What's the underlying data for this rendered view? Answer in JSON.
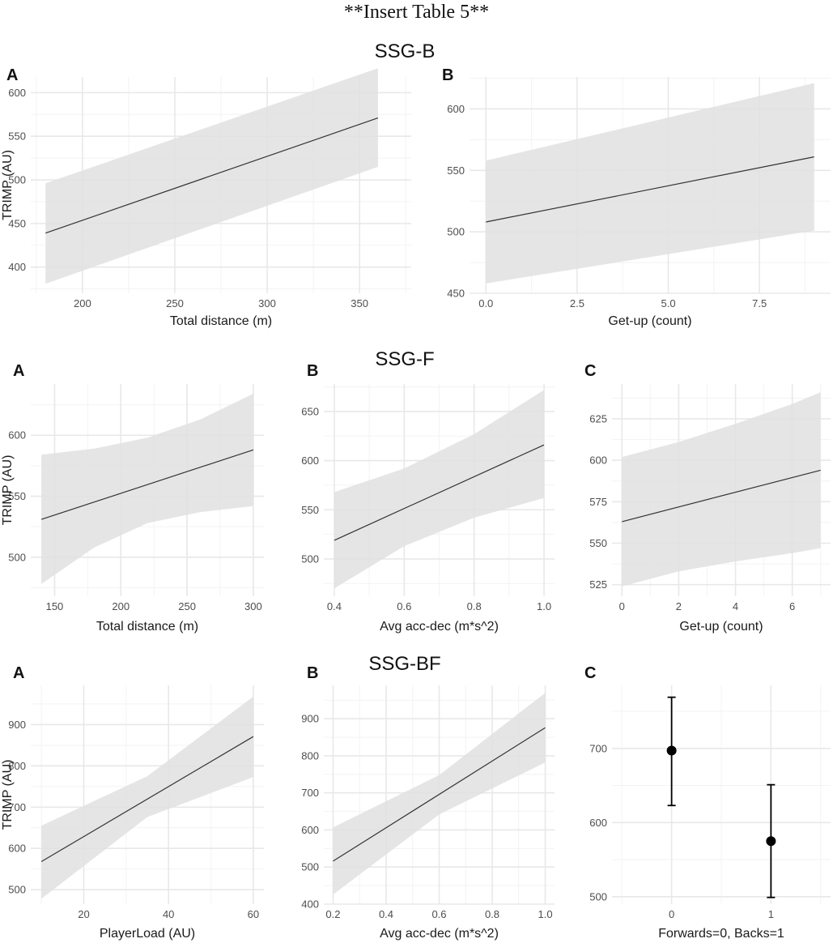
{
  "page": {
    "header_note": "**Insert Table 5**"
  },
  "sections": [
    {
      "title": "SSG-B"
    },
    {
      "title": "SSG-F"
    },
    {
      "title": "SSG-BF"
    }
  ],
  "colors": {
    "ribbon": "#e0e0e0",
    "line": "#333333",
    "grid_major": "#e8e8e8",
    "grid_minor": "#f3f3f3",
    "point": "#000000"
  },
  "chart_data": [
    {
      "id": "ssgb-a",
      "section": "SSG-B",
      "panel": "A",
      "type": "line",
      "title": "",
      "xlabel": "Total distance (m)",
      "ylabel": "TRIMP (AU)",
      "xlim": [
        172,
        378
      ],
      "ylim": [
        370,
        618
      ],
      "xticks": [
        200,
        250,
        300,
        350
      ],
      "xtick_labels": [
        "200",
        "250",
        "300",
        "350"
      ],
      "yticks": [
        400,
        450,
        500,
        550,
        600
      ],
      "ytick_labels": [
        "400",
        "450",
        "500",
        "550",
        "600"
      ],
      "x": [
        180,
        360
      ],
      "y": [
        439,
        571
      ],
      "band_x": [
        180,
        360
      ],
      "band_lo": [
        381,
        515
      ],
      "band_hi": [
        496,
        628
      ]
    },
    {
      "id": "ssgb-b",
      "section": "SSG-B",
      "panel": "B",
      "type": "line",
      "title": "",
      "xlabel": "Get-up (count)",
      "ylabel": "",
      "xlim": [
        -0.45,
        9.45
      ],
      "ylim": [
        450,
        626
      ],
      "xticks": [
        0,
        2.5,
        5,
        7.5
      ],
      "xtick_labels": [
        "0.0",
        "2.5",
        "5.0",
        "7.5"
      ],
      "yticks": [
        450,
        500,
        550,
        600
      ],
      "ytick_labels": [
        "450",
        "500",
        "550",
        "600"
      ],
      "x": [
        0,
        9
      ],
      "y": [
        508,
        561
      ],
      "band_x": [
        0,
        9
      ],
      "band_lo": [
        458,
        501
      ],
      "band_hi": [
        558,
        621
      ]
    },
    {
      "id": "ssgf-a",
      "section": "SSG-F",
      "panel": "A",
      "type": "line",
      "title": "",
      "xlabel": "Total distance (m)",
      "ylabel": "TRIMP (AU)",
      "xlim": [
        132,
        308
      ],
      "ylim": [
        468,
        642
      ],
      "xticks": [
        150,
        200,
        250,
        300
      ],
      "xtick_labels": [
        "150",
        "200",
        "250",
        "300"
      ],
      "yticks": [
        500,
        550,
        600
      ],
      "ytick_labels": [
        "500",
        "550",
        "600"
      ],
      "x": [
        140,
        300
      ],
      "y": [
        531,
        588
      ],
      "band_x": [
        140,
        180,
        220,
        260,
        300
      ],
      "band_lo": [
        478,
        508,
        528,
        537,
        542
      ],
      "band_hi": [
        584,
        589,
        598,
        613,
        634
      ]
    },
    {
      "id": "ssgf-b",
      "section": "SSG-F",
      "panel": "B",
      "type": "line",
      "title": "",
      "xlabel": "Avg acc-dec (m*s^2)",
      "ylabel": "",
      "xlim": [
        0.37,
        1.03
      ],
      "ylim": [
        462,
        678
      ],
      "xticks": [
        0.4,
        0.6,
        0.8,
        1.0
      ],
      "xtick_labels": [
        "0.4",
        "0.6",
        "0.8",
        "1.0"
      ],
      "yticks": [
        500,
        550,
        600,
        650
      ],
      "ytick_labels": [
        "500",
        "550",
        "600",
        "650"
      ],
      "x": [
        0.4,
        1.0
      ],
      "y": [
        519,
        616
      ],
      "band_x": [
        0.4,
        0.6,
        0.8,
        1.0
      ],
      "band_lo": [
        470,
        513,
        542,
        562
      ],
      "band_hi": [
        568,
        592,
        627,
        672
      ]
    },
    {
      "id": "ssgf-c",
      "section": "SSG-F",
      "panel": "C",
      "type": "line",
      "title": "",
      "xlabel": "Get-up (count)",
      "ylabel": "",
      "xlim": [
        -0.35,
        7.35
      ],
      "ylim": [
        518,
        646
      ],
      "xticks": [
        0,
        2,
        4,
        6
      ],
      "xtick_labels": [
        "0",
        "2",
        "4",
        "6"
      ],
      "yticks": [
        525,
        550,
        575,
        600,
        625
      ],
      "ytick_labels": [
        "525",
        "550",
        "575",
        "600",
        "625"
      ],
      "x": [
        0,
        7
      ],
      "y": [
        563,
        594
      ],
      "band_x": [
        0,
        2,
        4,
        6,
        7
      ],
      "band_lo": [
        524,
        533,
        539,
        544,
        547
      ],
      "band_hi": [
        602,
        611,
        622,
        634,
        641
      ]
    },
    {
      "id": "ssgbf-a",
      "section": "SSG-BF",
      "panel": "A",
      "type": "line",
      "title": "",
      "xlabel": "PlayerLoad (AU)",
      "ylabel": "TRIMP (AU)",
      "xlim": [
        7.5,
        62.5
      ],
      "ylim": [
        465,
        995
      ],
      "xticks": [
        20,
        40,
        60
      ],
      "xtick_labels": [
        "20",
        "40",
        "60"
      ],
      "yticks": [
        500,
        600,
        700,
        800,
        900
      ],
      "ytick_labels": [
        "500",
        "600",
        "700",
        "800",
        "900"
      ],
      "x": [
        10,
        60
      ],
      "y": [
        568,
        871
      ],
      "band_x": [
        10,
        35,
        60
      ],
      "band_lo": [
        478,
        676,
        773
      ],
      "band_hi": [
        655,
        775,
        968
      ]
    },
    {
      "id": "ssgbf-b",
      "section": "SSG-BF",
      "panel": "B",
      "type": "line",
      "title": "",
      "xlabel": "Avg acc-dec (m*s^2)",
      "ylabel": "",
      "xlim": [
        0.165,
        1.035
      ],
      "ylim": [
        400,
        990
      ],
      "xticks": [
        0.2,
        0.4,
        0.6,
        0.8,
        1.0
      ],
      "xtick_labels": [
        "0.2",
        "0.4",
        "0.6",
        "0.8",
        "1.0"
      ],
      "yticks": [
        400,
        500,
        600,
        700,
        800,
        900
      ],
      "ytick_labels": [
        "400",
        "500",
        "600",
        "700",
        "800",
        "900"
      ],
      "x": [
        0.2,
        1.0
      ],
      "y": [
        516,
        876
      ],
      "band_x": [
        0.2,
        0.6,
        1.0
      ],
      "band_lo": [
        426,
        642,
        782
      ],
      "band_hi": [
        607,
        748,
        970
      ]
    },
    {
      "id": "ssgbf-c",
      "section": "SSG-BF",
      "panel": "C",
      "type": "scatter",
      "title": "",
      "xlabel": "Forwards=0, Backs=1",
      "ylabel": "",
      "xlim": [
        -0.6,
        1.6
      ],
      "ylim": [
        490,
        785
      ],
      "xticks": [
        0,
        1
      ],
      "xtick_labels": [
        "0",
        "1"
      ],
      "yticks": [
        500,
        600,
        700
      ],
      "ytick_labels": [
        "500",
        "600",
        "700"
      ],
      "x": [
        0,
        1
      ],
      "y": [
        697,
        575
      ],
      "err_lo": [
        623,
        499
      ],
      "err_hi": [
        769,
        651
      ]
    }
  ]
}
